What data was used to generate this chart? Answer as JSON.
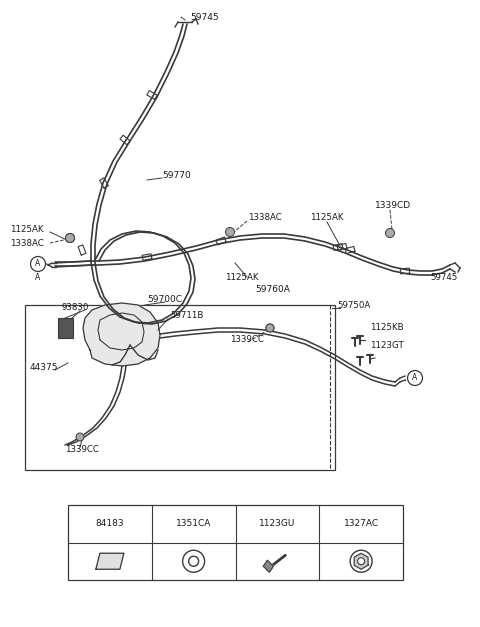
{
  "bg_color": "#ffffff",
  "line_color": "#3a3a3a",
  "text_color": "#1a1a1a",
  "figsize": [
    4.8,
    6.27
  ],
  "dpi": 100,
  "parts_table": {
    "cols": [
      "84183",
      "1351CA",
      "1123GU",
      "1327AC"
    ]
  }
}
